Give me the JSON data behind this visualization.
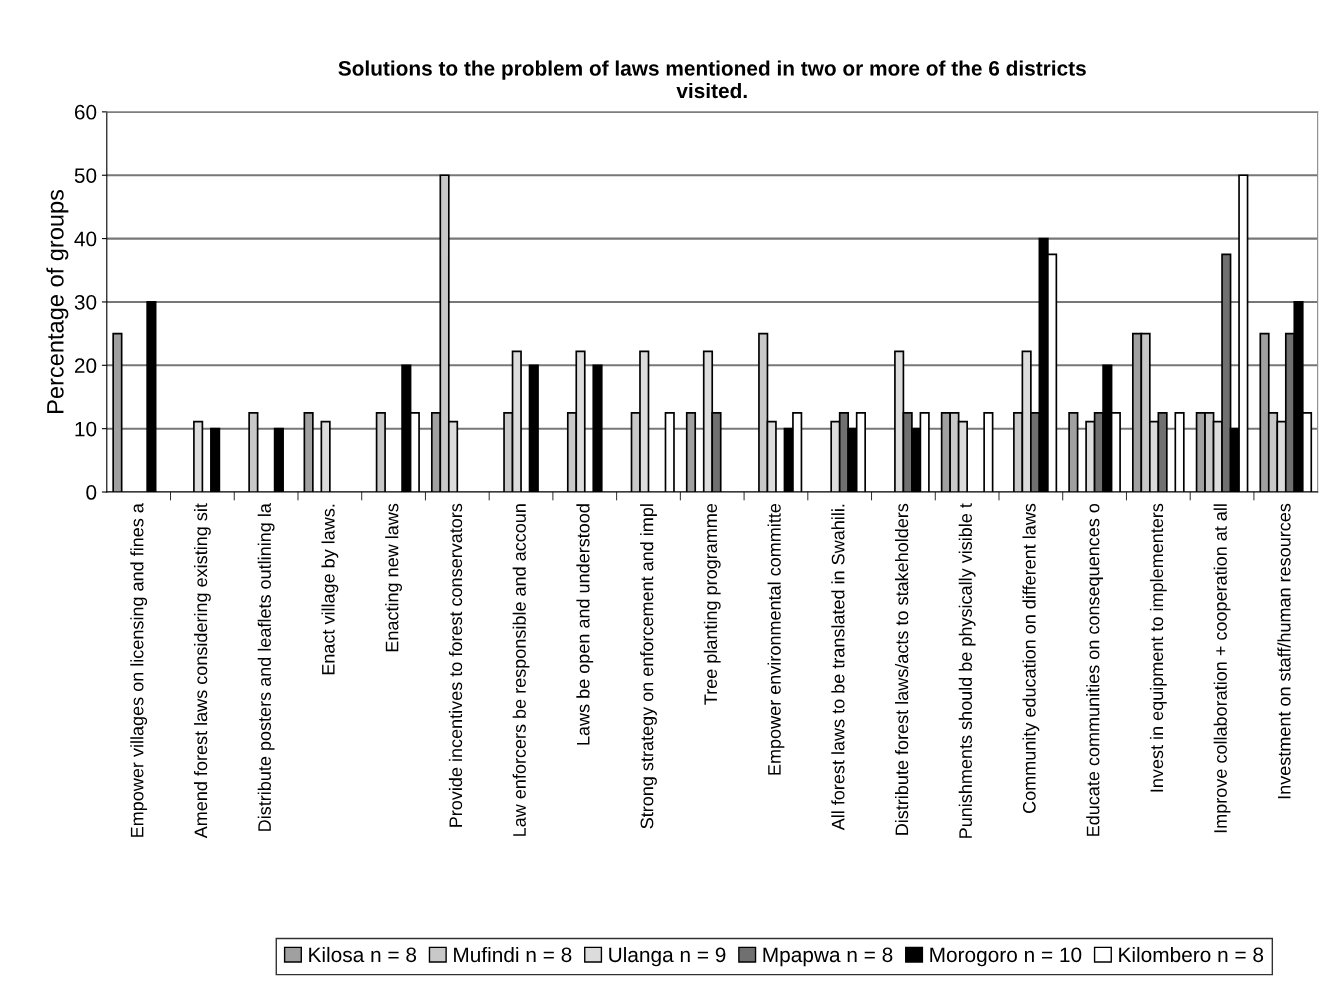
{
  "chart_data": {
    "type": "bar",
    "title": "Solutions to the problem of laws mentioned in two or more of the 6 districts\nvisited.",
    "ylabel": "Percentage of groups",
    "categories": [
      "Empower villages on licensing and fines a",
      "Amend forest laws considering existing sit",
      "Distribute posters and leaflets outlining la",
      "Enact village by laws.",
      "Enacting new laws",
      "Provide incentives to forest conservators",
      "Law enforcers be responsible and accoun",
      "Laws be open and understood",
      "Strong strategy on enforcement and impl",
      "Tree planting programme",
      "Empower environmental committe",
      "All forest laws to be translated in Swahili.",
      "Distribute forest laws/acts to stakeholders",
      "Punishments should be physically visible t",
      "Community education on different laws",
      "Educate communities on consequences o",
      "Invest in equipment to implementers",
      "Improve collaboration + cooperation at all",
      "Investment on staff/human resources"
    ],
    "series": [
      {
        "name": "Kilosa n = 8",
        "color": "#a0a0a0",
        "values": [
          25,
          null,
          null,
          12.5,
          null,
          12.5,
          null,
          null,
          null,
          12.5,
          null,
          null,
          null,
          12.5,
          null,
          12.5,
          25,
          12.5,
          25
        ]
      },
      {
        "name": "Mufindi n = 8",
        "color": "#c8c8c8",
        "values": [
          null,
          null,
          12.5,
          null,
          12.5,
          50,
          12.5,
          12.5,
          12.5,
          null,
          25,
          null,
          null,
          12.5,
          12.5,
          null,
          25,
          12.5,
          12.5
        ]
      },
      {
        "name": "Ulanga n = 9",
        "color": "#dcdcdc",
        "values": [
          null,
          11.1,
          null,
          11.1,
          null,
          11.1,
          22.2,
          22.2,
          22.2,
          22.2,
          11.1,
          11.1,
          22.2,
          11.1,
          22.2,
          11.1,
          11.1,
          11.1,
          11.1
        ]
      },
      {
        "name": "Mpapwa n = 8",
        "color": "#707070",
        "values": [
          null,
          null,
          null,
          null,
          null,
          null,
          null,
          null,
          null,
          12.5,
          null,
          12.5,
          12.5,
          null,
          12.5,
          12.5,
          12.5,
          37.5,
          25
        ]
      },
      {
        "name": "Morogoro n = 10",
        "color": "#000000",
        "values": [
          30,
          10,
          10,
          null,
          20,
          null,
          20,
          20,
          null,
          null,
          10,
          10,
          10,
          null,
          40,
          20,
          null,
          10,
          30
        ]
      },
      {
        "name": "Kilombero n = 8",
        "color": "#ffffff",
        "values": [
          null,
          null,
          null,
          null,
          12.5,
          null,
          null,
          null,
          12.5,
          null,
          12.5,
          12.5,
          12.5,
          12.5,
          37.5,
          12.5,
          12.5,
          50,
          12.5
        ]
      }
    ],
    "ylim": [
      0,
      60
    ],
    "yticks": [
      0,
      10,
      20,
      30,
      40,
      50,
      60
    ],
    "grid": "y",
    "legend": "bottom"
  }
}
